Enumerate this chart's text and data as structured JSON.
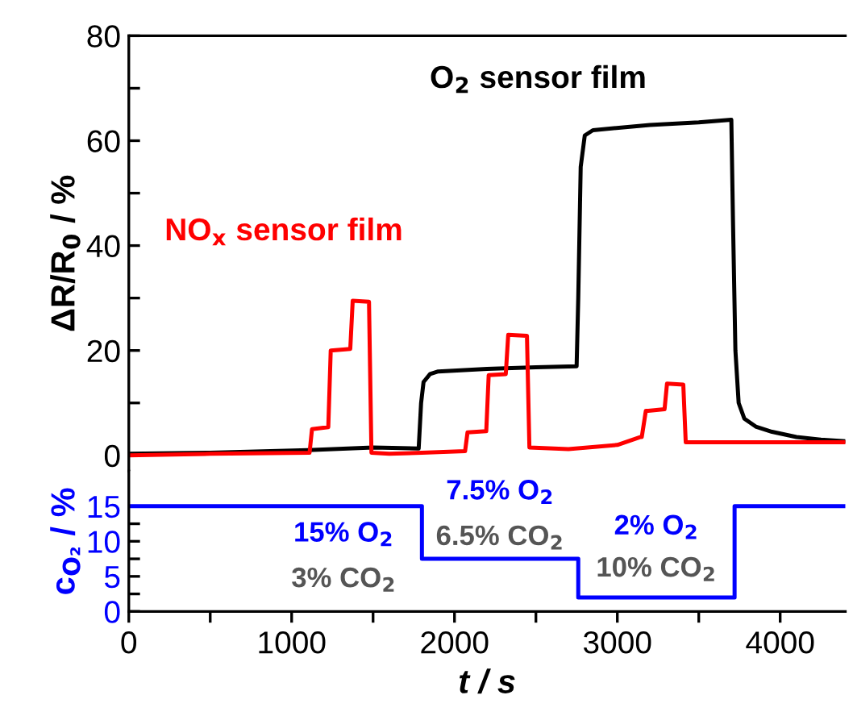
{
  "chart_data": [
    {
      "type": "line",
      "ylabel": "ΔR/R$_{0}$ / %",
      "xlim": [
        0,
        4400
      ],
      "ylim": [
        -3,
        80
      ],
      "yticks": [
        0,
        {
          "value": 10,
          "label": null
        },
        20,
        {
          "value": 30,
          "label": null
        },
        40,
        {
          "value": 50,
          "label": null
        },
        60,
        {
          "value": 70,
          "label": null
        },
        80
      ],
      "tick_labels": "y",
      "grid": false,
      "legend": false,
      "series": [
        {
          "name": "O$_{2}$ sensor film",
          "color": "#000000",
          "x": [
            0,
            500,
            1100,
            1500,
            1780,
            1795,
            1810,
            1850,
            1900,
            2200,
            2500,
            2750,
            2760,
            2775,
            2800,
            2850,
            3200,
            3500,
            3700,
            3710,
            3725,
            3745,
            3780,
            3850,
            3950,
            4100,
            4250,
            4400
          ],
          "values": [
            0.3,
            0.5,
            1,
            1.5,
            1.3,
            10,
            14,
            15.5,
            16,
            16.5,
            16.8,
            17,
            30,
            55,
            61,
            62,
            63,
            63.5,
            64,
            45,
            20,
            10,
            7,
            5.5,
            4.5,
            3.5,
            3,
            2.7
          ]
        },
        {
          "name": "NO$_{x}$ sensor film",
          "color": "#ff0000",
          "x": [
            0,
            500,
            1110,
            1125,
            1225,
            1240,
            1360,
            1375,
            1475,
            1490,
            1600,
            1800,
            2065,
            2080,
            2195,
            2210,
            2315,
            2330,
            2445,
            2460,
            2700,
            3000,
            3140,
            3150,
            3175,
            3190,
            3290,
            3305,
            3405,
            3420,
            3600,
            3900,
            4200,
            4400
          ],
          "values": [
            0,
            0.3,
            0.5,
            5,
            5.4,
            20,
            20.3,
            29.5,
            29.3,
            0.5,
            0.3,
            0.5,
            0.8,
            4.4,
            4.6,
            15.3,
            15.5,
            23,
            22.8,
            1.5,
            1.2,
            2,
            3.5,
            3.5,
            8.5,
            8.5,
            8.8,
            13.7,
            13.5,
            2.5,
            2.5,
            2.5,
            2.5,
            2.5
          ]
        }
      ]
    },
    {
      "type": "step",
      "xlabel": "t / s",
      "ylabel": "c$_{O₂}$ / %",
      "xlim": [
        0,
        4400
      ],
      "ylim": [
        0,
        20
      ],
      "xticks": [
        0,
        {
          "value": 500,
          "label": null
        },
        1000,
        {
          "value": 1500,
          "label": null
        },
        2000,
        {
          "value": 2500,
          "label": null
        },
        3000,
        {
          "value": 3500,
          "label": null
        },
        4000
      ],
      "yticks": [
        0,
        {
          "value": 2.5,
          "label": null
        },
        5,
        {
          "value": 7.5,
          "label": null
        },
        10,
        {
          "value": 12.5,
          "label": null
        },
        15
      ],
      "grid": false,
      "legend": false,
      "series": [
        {
          "color": "#0000ff",
          "x": [
            0,
            1800,
            2760,
            3720,
            4400
          ],
          "values": [
            15,
            7.5,
            2,
            15,
            15
          ]
        }
      ],
      "annotations": [
        "15% O$_{2}$",
        "3% CO$_{2}$",
        "7.5% O$_{2}$",
        "6.5% CO$_{2}$",
        "2% O$_{2}$",
        "10% CO$_{2}$"
      ]
    }
  ]
}
